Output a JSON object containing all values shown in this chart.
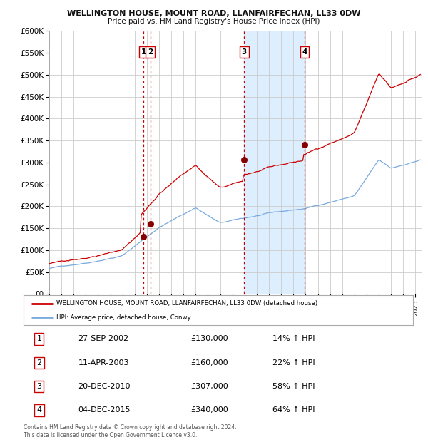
{
  "title1": "WELLINGTON HOUSE, MOUNT ROAD, LLANFAIRFECHAN, LL33 0DW",
  "title2": "Price paid vs. HM Land Registry's House Price Index (HPI)",
  "ylim": [
    0,
    600000
  ],
  "yticks": [
    0,
    50000,
    100000,
    150000,
    200000,
    250000,
    300000,
    350000,
    400000,
    450000,
    500000,
    550000,
    600000
  ],
  "xlim_start": 1995.0,
  "xlim_end": 2025.5,
  "background_color": "#ffffff",
  "grid_color": "#cccccc",
  "hpi_line_color": "#7aaadd",
  "price_line_color": "#cc0000",
  "sale_marker_color": "#880000",
  "vline_color": "#cc0000",
  "shade_color": "#ddeeff",
  "transactions": [
    {
      "num": 1,
      "date_year": 2002.74,
      "price": 130000,
      "label": "27-SEP-2002",
      "amount": "£130,000",
      "pct": "14% ↑ HPI"
    },
    {
      "num": 2,
      "date_year": 2003.27,
      "price": 160000,
      "label": "11-APR-2003",
      "amount": "£160,000",
      "pct": "22% ↑ HPI"
    },
    {
      "num": 3,
      "date_year": 2010.97,
      "price": 307000,
      "label": "20-DEC-2010",
      "amount": "£307,000",
      "pct": "58% ↑ HPI"
    },
    {
      "num": 4,
      "date_year": 2015.92,
      "price": 340000,
      "label": "04-DEC-2015",
      "amount": "£340,000",
      "pct": "64% ↑ HPI"
    }
  ],
  "legend_line1": "WELLINGTON HOUSE, MOUNT ROAD, LLANFAIRFECHAN, LL33 0DW (detached house)",
  "legend_line2": "HPI: Average price, detached house, Conwy",
  "footer1": "Contains HM Land Registry data © Crown copyright and database right 2024.",
  "footer2": "This data is licensed under the Open Government Licence v3.0."
}
